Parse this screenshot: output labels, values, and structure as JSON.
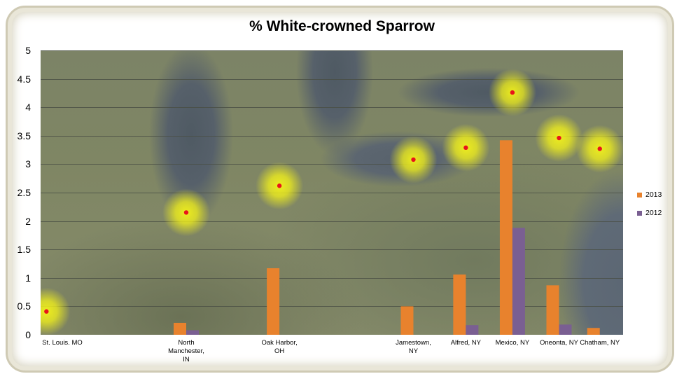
{
  "chart_data": {
    "type": "bar",
    "title": "% White-crowned Sparrow",
    "xlabel": "",
    "ylabel": "",
    "ylim": [
      0,
      5
    ],
    "yticks": [
      "0",
      "0.5",
      "1",
      "1.5",
      "2",
      "2.5",
      "3",
      "3.5",
      "4",
      "4.5",
      "5"
    ],
    "categories": [
      "St. Louis. MO",
      "North Manchester, IN",
      "Oak Harbor, OH",
      "Jamestown, NY",
      "Alfred, NY",
      "Mexico, NY",
      "Oneonta, NY",
      "Chatham, NY"
    ],
    "category_positions": [
      0.01,
      0.25,
      0.41,
      0.64,
      0.73,
      0.81,
      0.89,
      0.96
    ],
    "series": [
      {
        "name": "2013",
        "color": "#e8822d",
        "values": [
          0,
          0.21,
          1.17,
          0.5,
          1.06,
          3.42,
          0.87,
          0.12
        ]
      },
      {
        "name": "2012",
        "color": "#7a5f92",
        "values": [
          0,
          0.08,
          0,
          0,
          0.17,
          1.88,
          0.18,
          0
        ]
      }
    ],
    "map_markers": {
      "description_free": true,
      "heights": [
        0.41,
        2.15,
        2.62,
        3.08,
        3.29,
        4.26,
        3.46,
        3.27
      ],
      "color": "#e8141b",
      "glow_color": "#f3f21a"
    },
    "grid": true,
    "legend_position": "right"
  }
}
